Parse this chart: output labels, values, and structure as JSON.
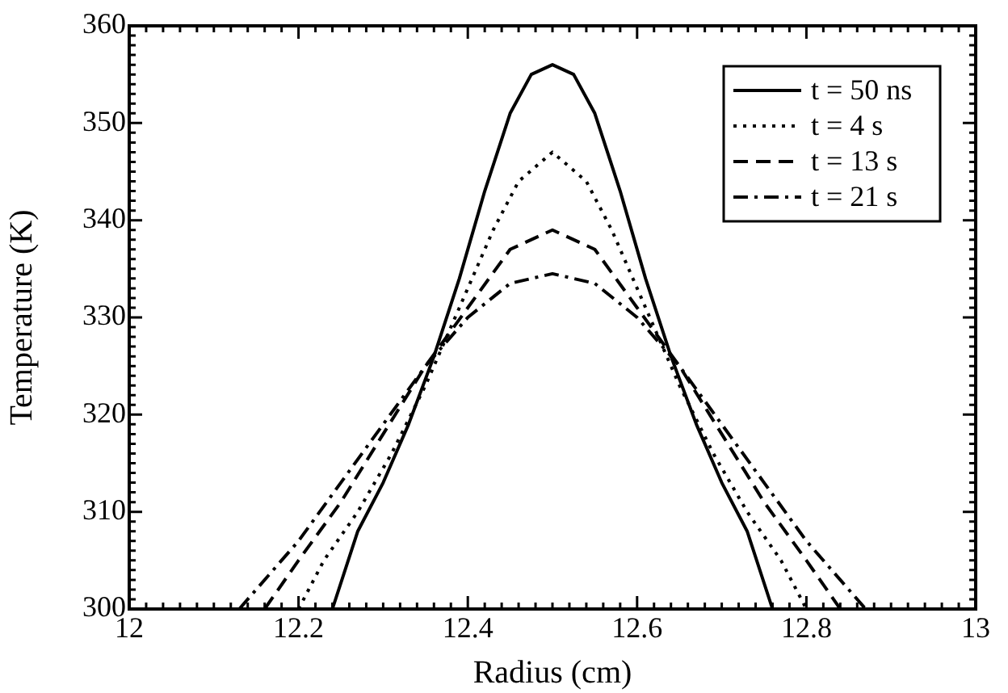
{
  "chart_data": {
    "type": "line",
    "xlabel": "Radius (cm)",
    "ylabel": "Temperature (K)",
    "xlim": [
      12,
      13
    ],
    "ylim": [
      300,
      360
    ],
    "xticks": [
      12,
      12.2,
      12.4,
      12.6,
      12.8,
      13
    ],
    "yticks": [
      300,
      310,
      320,
      330,
      340,
      350,
      360
    ],
    "legend": "top right",
    "marker": "none",
    "series": [
      {
        "name": "t = 50 ns",
        "color": "#000000",
        "line_style": "solid",
        "x": [
          12.24,
          12.27,
          12.3,
          12.33,
          12.36,
          12.39,
          12.42,
          12.45,
          12.475,
          12.5,
          12.525,
          12.55,
          12.58,
          12.61,
          12.64,
          12.67,
          12.7,
          12.73,
          12.76
        ],
        "values": [
          300,
          308,
          313,
          319,
          326,
          334,
          343,
          351,
          355,
          356,
          355,
          351,
          343,
          334,
          326,
          319,
          313,
          308,
          300
        ]
      },
      {
        "name": "t = 4 s",
        "color": "#000000",
        "line_style": "dotted",
        "x": [
          12.2,
          12.23,
          12.27,
          12.31,
          12.35,
          12.39,
          12.43,
          12.46,
          12.5,
          12.54,
          12.57,
          12.61,
          12.65,
          12.69,
          12.73,
          12.77,
          12.8
        ],
        "values": [
          300,
          305,
          310,
          316,
          323,
          331,
          339,
          344,
          347,
          344,
          339,
          331,
          323,
          316,
          310,
          305,
          300
        ]
      },
      {
        "name": "t = 13 s",
        "color": "#000000",
        "line_style": "dashed",
        "x": [
          12.16,
          12.2,
          12.25,
          12.3,
          12.35,
          12.4,
          12.45,
          12.5,
          12.55,
          12.6,
          12.65,
          12.7,
          12.75,
          12.8,
          12.84
        ],
        "values": [
          300,
          305,
          311,
          318,
          325,
          331,
          337,
          339,
          337,
          331,
          325,
          318,
          311,
          305,
          300
        ]
      },
      {
        "name": "t = 21 s",
        "color": "#000000",
        "line_style": "dashdot",
        "x": [
          12.13,
          12.2,
          12.25,
          12.3,
          12.35,
          12.4,
          12.45,
          12.5,
          12.55,
          12.6,
          12.65,
          12.7,
          12.75,
          12.8,
          12.87
        ],
        "values": [
          300,
          307,
          313,
          319,
          325,
          330,
          333.5,
          334.5,
          333.5,
          330,
          325,
          319,
          313,
          307,
          300
        ]
      }
    ]
  }
}
